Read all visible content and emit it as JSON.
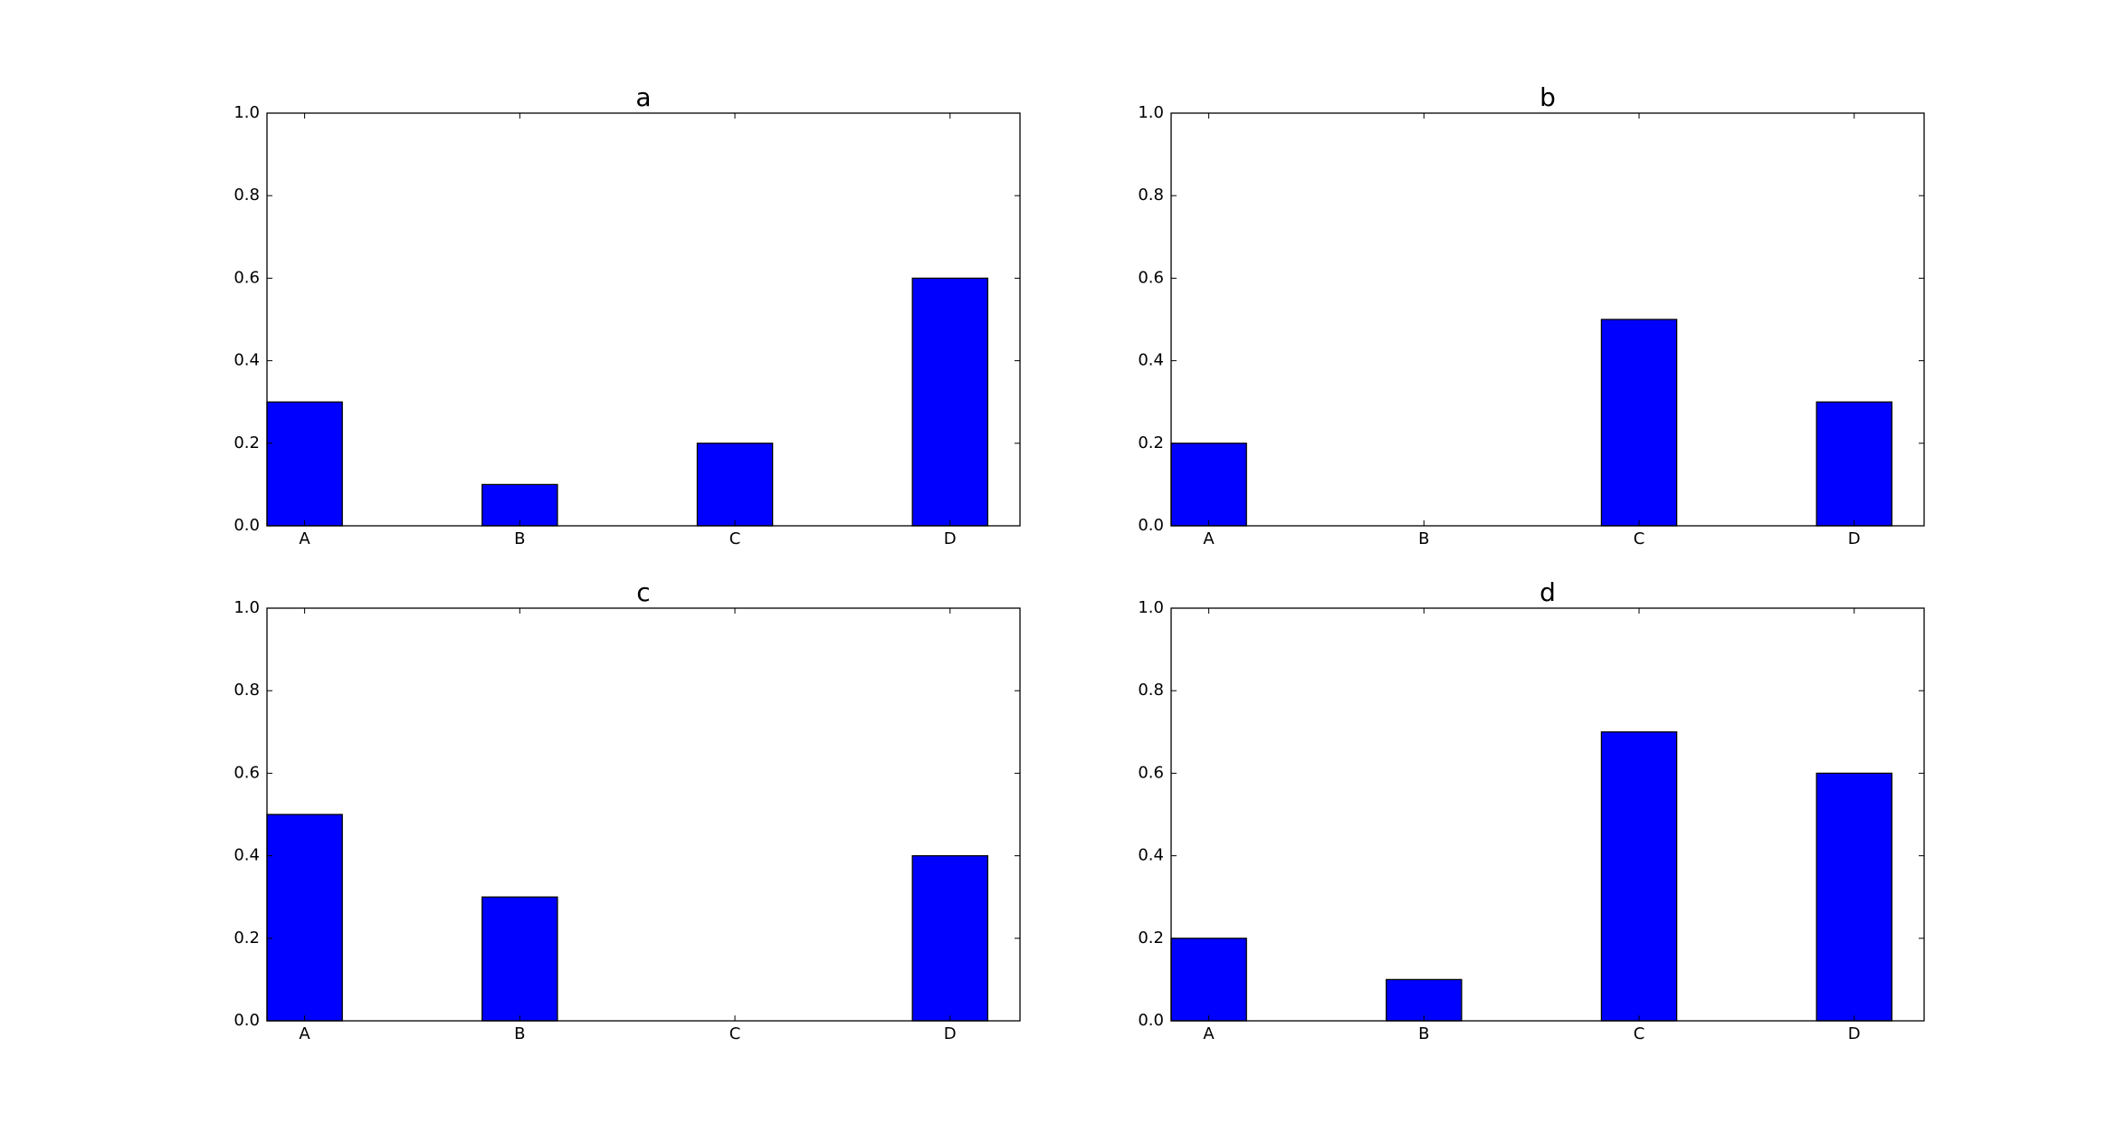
{
  "chart_data": [
    {
      "type": "bar",
      "title": "a",
      "categories": [
        "A",
        "B",
        "C",
        "D"
      ],
      "values": [
        0.3,
        0.1,
        0.2,
        0.6
      ],
      "color": "#0000ff",
      "ylim": [
        0,
        1
      ],
      "yticks": [
        {
          "value": 0,
          "label": "0.0"
        },
        0.2,
        0.4,
        0.6,
        0.8,
        {
          "value": 1,
          "label": "1.0"
        }
      ]
    },
    {
      "type": "bar",
      "title": "b",
      "categories": [
        "A",
        "B",
        "C",
        "D"
      ],
      "values": [
        0.2,
        0,
        0.5,
        0.3
      ],
      "color": "#0000ff",
      "ylim": [
        0,
        1
      ],
      "yticks": [
        {
          "value": 0,
          "label": "0.0"
        },
        0.2,
        0.4,
        0.6,
        0.8,
        {
          "value": 1,
          "label": "1.0"
        }
      ]
    },
    {
      "type": "bar",
      "title": "c",
      "categories": [
        "A",
        "B",
        "C",
        "D"
      ],
      "values": [
        0.5,
        0.3,
        0,
        0.4
      ],
      "color": "#0000ff",
      "ylim": [
        0,
        1
      ],
      "yticks": [
        {
          "value": 0,
          "label": "0.0"
        },
        0.2,
        0.4,
        0.6,
        0.8,
        {
          "value": 1,
          "label": "1.0"
        }
      ]
    },
    {
      "type": "bar",
      "title": "d",
      "categories": [
        "A",
        "B",
        "C",
        "D"
      ],
      "values": [
        0.2,
        0.1,
        0.7,
        0.6
      ],
      "color": "#0000ff",
      "ylim": [
        0,
        1
      ],
      "yticks": [
        {
          "value": 0,
          "label": "0.0"
        },
        0.2,
        0.4,
        0.6,
        0.8,
        {
          "value": 1,
          "label": "1.0"
        }
      ]
    }
  ]
}
